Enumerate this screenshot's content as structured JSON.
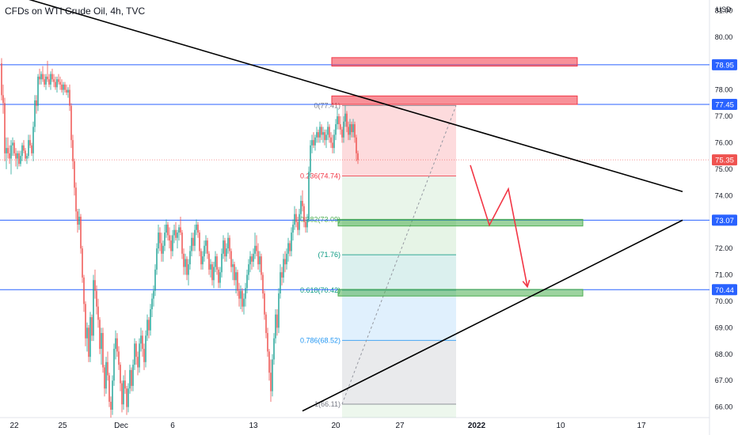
{
  "header": {
    "title": "CFDs on WTI Crude Oil, 4h, TVC"
  },
  "colors": {
    "up": "#26a69a",
    "down": "#ef5350",
    "level_line": "#2962ff",
    "resistance_zone": "#f23645",
    "support_zone": "#4caf50",
    "trendline": "#000000",
    "projection_arrow": "#f23645"
  },
  "chart_data": {
    "type": "candlestick",
    "title": "CFDs on WTI Crude Oil, 4h, TVC",
    "y_axis": {
      "unit_label": "USD",
      "range": [
        65.6,
        81.4
      ],
      "ticks": [
        81.0,
        80.0,
        79.0,
        78.0,
        77.0,
        76.0,
        75.0,
        74.0,
        73.0,
        72.0,
        71.0,
        70.0,
        69.0,
        68.0,
        67.0,
        66.0
      ]
    },
    "x_axis": {
      "tick_labels": [
        "22",
        "25",
        "Dec",
        "6",
        "13",
        "20",
        "27",
        "2022",
        "10",
        "17"
      ]
    },
    "price_badges": [
      {
        "value": "78.95",
        "kind": "level"
      },
      {
        "value": "77.45",
        "kind": "level"
      },
      {
        "value": "75.35",
        "kind": "last"
      },
      {
        "value": "73.07",
        "kind": "level"
      },
      {
        "value": "70.44",
        "kind": "level"
      }
    ],
    "horizontal_levels": [
      78.95,
      77.45,
      73.07,
      70.44
    ],
    "last_price": 75.35,
    "fibonacci": [
      {
        "label": "0(77.41)",
        "ratio": 0,
        "price": 77.41
      },
      {
        "label": "0.236(74.74)",
        "ratio": 0.236,
        "price": 74.74
      },
      {
        "label": "0.382(73.09)",
        "ratio": 0.382,
        "price": 73.09
      },
      {
        "label": "(71.76)",
        "ratio": 0.5,
        "price": 71.76
      },
      {
        "label": "0.618(70.42)",
        "ratio": 0.618,
        "price": 70.42
      },
      {
        "label": "0.786(68.52)",
        "ratio": 0.786,
        "price": 68.52
      },
      {
        "label": "1(66.11)",
        "ratio": 1,
        "price": 66.11
      }
    ],
    "zones": [
      {
        "kind": "resistance",
        "price_low": 78.9,
        "price_high": 79.22
      },
      {
        "kind": "resistance",
        "price_low": 77.45,
        "price_high": 77.77
      },
      {
        "kind": "support",
        "price_low": 72.85,
        "price_high": 73.1
      },
      {
        "kind": "support",
        "price_low": 70.2,
        "price_high": 70.45
      }
    ],
    "trendlines": [
      {
        "from": {
          "bar": 10,
          "price": 81.55
        },
        "to": {
          "bar": 430,
          "price": 74.15
        }
      },
      {
        "from": {
          "bar": 190,
          "price": 65.85
        },
        "to": {
          "bar": 430,
          "price": 73.07
        }
      }
    ],
    "projection": [
      {
        "bar": 296,
        "price": 75.15
      },
      {
        "bar": 308,
        "price": 72.88
      },
      {
        "bar": 320,
        "price": 74.25
      },
      {
        "bar": 332,
        "price": 70.55
      }
    ],
    "candles": [
      [
        79.0,
        79.2,
        77.6,
        77.8
      ],
      [
        77.8,
        78.2,
        77.1,
        77.5
      ],
      [
        77.5,
        77.7,
        75.3,
        75.6
      ],
      [
        75.6,
        76.2,
        75.0,
        75.8
      ],
      [
        75.8,
        76.2,
        75.4,
        75.6
      ],
      [
        75.6,
        75.9,
        75.2,
        75.4
      ],
      [
        75.4,
        76.1,
        74.8,
        75.9
      ],
      [
        75.9,
        76.2,
        75.5,
        76.0
      ],
      [
        76.0,
        76.1,
        75.5,
        75.6
      ],
      [
        75.6,
        75.8,
        75.1,
        75.4
      ],
      [
        75.4,
        75.7,
        75.0,
        75.6
      ],
      [
        75.6,
        75.7,
        75.1,
        75.2
      ],
      [
        75.2,
        75.7,
        75.1,
        75.5
      ],
      [
        75.5,
        76.0,
        75.3,
        75.9
      ],
      [
        75.9,
        76.1,
        75.6,
        75.7
      ],
      [
        75.7,
        75.8,
        75.3,
        75.4
      ],
      [
        75.4,
        75.6,
        75.2,
        75.5
      ],
      [
        75.5,
        76.3,
        75.4,
        76.1
      ],
      [
        76.1,
        76.3,
        75.8,
        75.9
      ],
      [
        75.9,
        76.0,
        75.5,
        75.6
      ],
      [
        75.6,
        76.8,
        75.3,
        76.6
      ],
      [
        76.6,
        77.8,
        76.4,
        77.6
      ],
      [
        77.6,
        77.8,
        77.1,
        77.4
      ],
      [
        77.4,
        78.6,
        77.2,
        78.5
      ],
      [
        78.5,
        78.8,
        78.2,
        78.4
      ],
      [
        78.4,
        78.7,
        78.2,
        78.6
      ],
      [
        78.6,
        78.9,
        78.3,
        78.4
      ],
      [
        78.4,
        78.6,
        78.1,
        78.2
      ],
      [
        78.2,
        78.6,
        78.0,
        78.5
      ],
      [
        78.5,
        79.1,
        78.3,
        78.4
      ],
      [
        78.4,
        78.6,
        78.1,
        78.2
      ],
      [
        78.2,
        78.7,
        78.0,
        78.6
      ],
      [
        78.6,
        78.8,
        78.3,
        78.4
      ],
      [
        78.4,
        78.6,
        78.1,
        78.3
      ],
      [
        78.3,
        78.5,
        78.0,
        78.1
      ],
      [
        78.1,
        78.5,
        77.9,
        78.4
      ],
      [
        78.4,
        78.6,
        78.2,
        78.3
      ],
      [
        78.3,
        78.5,
        78.0,
        78.2
      ],
      [
        78.2,
        78.4,
        77.9,
        78.0
      ],
      [
        78.0,
        78.3,
        77.8,
        78.2
      ],
      [
        78.2,
        78.3,
        77.9,
        78.0
      ],
      [
        78.0,
        78.2,
        77.8,
        77.9
      ],
      [
        77.9,
        78.1,
        77.7,
        78.0
      ],
      [
        78.0,
        78.2,
        77.2,
        77.4
      ],
      [
        77.4,
        77.5,
        75.8,
        76.1
      ],
      [
        76.1,
        76.3,
        75.0,
        75.3
      ],
      [
        75.3,
        75.4,
        74.0,
        74.3
      ],
      [
        74.3,
        74.5,
        73.1,
        73.4
      ],
      [
        73.4,
        73.5,
        72.6,
        72.9
      ],
      [
        72.9,
        73.5,
        72.7,
        73.2
      ],
      [
        73.2,
        73.3,
        71.8,
        72.0
      ],
      [
        72.0,
        72.1,
        70.7,
        70.9
      ],
      [
        70.9,
        71.0,
        69.6,
        69.9
      ],
      [
        69.9,
        70.0,
        68.3,
        68.6
      ],
      [
        68.6,
        69.2,
        68.1,
        69.0
      ],
      [
        69.0,
        69.1,
        67.7,
        67.9
      ],
      [
        67.9,
        69.6,
        67.7,
        69.4
      ],
      [
        69.4,
        69.5,
        68.5,
        68.7
      ],
      [
        68.7,
        71.0,
        68.5,
        70.8
      ],
      [
        70.8,
        71.2,
        70.1,
        70.4
      ],
      [
        70.4,
        70.6,
        69.5,
        69.8
      ],
      [
        69.8,
        70.1,
        69.0,
        69.3
      ],
      [
        69.3,
        69.4,
        68.0,
        68.2
      ],
      [
        68.2,
        69.0,
        67.6,
        68.8
      ],
      [
        68.8,
        69.0,
        67.3,
        67.5
      ],
      [
        67.5,
        67.6,
        66.4,
        66.7
      ],
      [
        66.7,
        67.9,
        66.5,
        67.7
      ],
      [
        67.7,
        68.1,
        67.0,
        67.2
      ],
      [
        67.2,
        67.3,
        66.0,
        66.2
      ],
      [
        66.2,
        66.4,
        65.6,
        65.9
      ],
      [
        65.9,
        67.2,
        65.7,
        67.0
      ],
      [
        67.0,
        68.4,
        66.8,
        68.2
      ],
      [
        68.2,
        68.9,
        67.8,
        68.6
      ],
      [
        68.6,
        68.8,
        67.9,
        68.1
      ],
      [
        68.1,
        68.3,
        67.4,
        67.6
      ],
      [
        67.6,
        67.7,
        66.6,
        66.9
      ],
      [
        66.9,
        67.0,
        65.8,
        66.1
      ],
      [
        66.1,
        67.2,
        65.9,
        67.0
      ],
      [
        67.0,
        67.4,
        66.5,
        66.7
      ],
      [
        66.7,
        66.8,
        65.7,
        66.0
      ],
      [
        66.0,
        66.9,
        65.8,
        66.7
      ],
      [
        66.7,
        67.6,
        66.5,
        67.4
      ],
      [
        67.4,
        67.5,
        66.6,
        66.8
      ],
      [
        66.8,
        67.8,
        66.6,
        67.6
      ],
      [
        67.6,
        68.6,
        67.4,
        68.4
      ],
      [
        68.4,
        68.5,
        67.6,
        67.9
      ],
      [
        67.9,
        68.1,
        67.2,
        67.5
      ],
      [
        67.5,
        68.6,
        67.3,
        68.4
      ],
      [
        68.4,
        69.0,
        68.1,
        68.7
      ],
      [
        68.7,
        68.9,
        67.9,
        68.2
      ],
      [
        68.2,
        68.4,
        67.4,
        67.7
      ],
      [
        67.7,
        68.9,
        67.5,
        68.7
      ],
      [
        68.7,
        69.5,
        68.5,
        69.3
      ],
      [
        69.3,
        69.4,
        68.6,
        68.9
      ],
      [
        68.9,
        69.9,
        68.7,
        69.7
      ],
      [
        69.7,
        70.3,
        69.4,
        70.1
      ],
      [
        70.1,
        70.6,
        69.8,
        70.4
      ],
      [
        70.4,
        71.4,
        70.2,
        71.2
      ],
      [
        71.2,
        72.2,
        71.0,
        72.0
      ],
      [
        72.0,
        72.9,
        71.8,
        72.6
      ],
      [
        72.6,
        72.8,
        71.9,
        72.2
      ],
      [
        72.2,
        72.6,
        71.5,
        71.8
      ],
      [
        71.8,
        72.3,
        71.5,
        72.1
      ],
      [
        72.1,
        72.9,
        71.9,
        72.6
      ],
      [
        72.6,
        73.1,
        72.4,
        72.9
      ],
      [
        72.9,
        73.0,
        72.3,
        72.5
      ],
      [
        72.5,
        72.8,
        72.0,
        72.3
      ],
      [
        72.3,
        72.5,
        71.6,
        71.9
      ],
      [
        71.9,
        72.7,
        71.7,
        72.5
      ],
      [
        72.5,
        72.9,
        72.2,
        72.7
      ],
      [
        72.7,
        73.0,
        72.3,
        72.4
      ],
      [
        72.4,
        72.7,
        72.0,
        72.6
      ],
      [
        72.6,
        72.9,
        72.3,
        72.8
      ],
      [
        72.8,
        73.2,
        72.5,
        72.6
      ],
      [
        72.6,
        72.7,
        71.6,
        71.8
      ],
      [
        71.8,
        72.0,
        71.0,
        71.3
      ],
      [
        71.3,
        71.8,
        71.0,
        71.6
      ],
      [
        71.6,
        71.7,
        70.8,
        71.0
      ],
      [
        71.0,
        71.6,
        70.6,
        71.4
      ],
      [
        71.4,
        72.1,
        71.2,
        71.9
      ],
      [
        71.9,
        72.6,
        71.7,
        72.4
      ],
      [
        72.4,
        72.6,
        71.9,
        72.1
      ],
      [
        72.1,
        72.9,
        71.9,
        72.7
      ],
      [
        72.7,
        73.1,
        72.5,
        72.9
      ],
      [
        72.9,
        73.0,
        72.4,
        72.6
      ],
      [
        72.6,
        72.7,
        71.7,
        71.9
      ],
      [
        71.9,
        72.0,
        71.2,
        71.4
      ],
      [
        71.4,
        71.9,
        71.2,
        71.7
      ],
      [
        71.7,
        72.3,
        71.5,
        72.1
      ],
      [
        72.1,
        72.5,
        71.8,
        72.3
      ],
      [
        72.3,
        72.4,
        71.6,
        71.8
      ],
      [
        71.8,
        71.9,
        71.0,
        71.2
      ],
      [
        71.2,
        71.6,
        70.9,
        71.4
      ],
      [
        71.4,
        71.5,
        70.6,
        70.8
      ],
      [
        70.8,
        71.5,
        70.5,
        71.3
      ],
      [
        71.3,
        71.9,
        71.1,
        71.7
      ],
      [
        71.7,
        71.8,
        71.0,
        71.2
      ],
      [
        71.2,
        71.3,
        70.5,
        70.7
      ],
      [
        70.7,
        71.3,
        70.5,
        71.1
      ],
      [
        71.1,
        72.0,
        70.9,
        71.8
      ],
      [
        71.8,
        72.5,
        71.6,
        72.3
      ],
      [
        72.3,
        72.4,
        71.5,
        71.7
      ],
      [
        71.7,
        72.2,
        71.5,
        72.0
      ],
      [
        72.0,
        72.6,
        71.8,
        72.4
      ],
      [
        72.4,
        72.5,
        71.6,
        71.9
      ],
      [
        71.9,
        72.0,
        71.1,
        71.3
      ],
      [
        71.3,
        71.6,
        70.8,
        71.4
      ],
      [
        71.4,
        71.5,
        70.6,
        70.8
      ],
      [
        70.8,
        71.3,
        70.3,
        71.1
      ],
      [
        71.1,
        71.2,
        70.2,
        70.4
      ],
      [
        70.4,
        70.7,
        69.8,
        70.1
      ],
      [
        70.1,
        70.6,
        69.7,
        70.4
      ],
      [
        70.4,
        70.5,
        69.6,
        69.8
      ],
      [
        69.8,
        70.3,
        69.5,
        70.1
      ],
      [
        70.1,
        70.7,
        69.8,
        70.5
      ],
      [
        70.5,
        71.2,
        70.3,
        71.0
      ],
      [
        71.0,
        71.6,
        70.8,
        71.4
      ],
      [
        71.4,
        71.9,
        71.1,
        71.7
      ],
      [
        71.7,
        71.8,
        71.2,
        71.5
      ],
      [
        71.5,
        72.0,
        71.3,
        71.8
      ],
      [
        71.8,
        72.6,
        71.6,
        72.1
      ],
      [
        72.1,
        72.5,
        71.7,
        71.9
      ],
      [
        71.9,
        72.2,
        71.2,
        71.4
      ],
      [
        71.4,
        71.9,
        71.1,
        71.7
      ],
      [
        71.7,
        71.8,
        70.8,
        71.0
      ],
      [
        71.0,
        71.1,
        70.1,
        70.3
      ],
      [
        70.3,
        70.4,
        69.3,
        69.5
      ],
      [
        69.5,
        69.6,
        68.6,
        68.8
      ],
      [
        68.8,
        69.0,
        67.9,
        68.1
      ],
      [
        68.1,
        68.2,
        67.0,
        67.3
      ],
      [
        67.3,
        67.8,
        66.2,
        66.6
      ],
      [
        66.6,
        68.0,
        66.4,
        67.8
      ],
      [
        67.8,
        68.8,
        67.6,
        68.6
      ],
      [
        68.6,
        69.7,
        68.4,
        69.5
      ],
      [
        69.5,
        69.7,
        68.7,
        69.0
      ],
      [
        69.0,
        70.5,
        68.8,
        70.3
      ],
      [
        70.3,
        71.4,
        70.1,
        71.1
      ],
      [
        71.1,
        71.3,
        70.6,
        70.9
      ],
      [
        70.9,
        71.8,
        70.7,
        71.6
      ],
      [
        71.6,
        71.9,
        71.1,
        71.4
      ],
      [
        71.4,
        72.0,
        71.2,
        71.8
      ],
      [
        71.8,
        72.4,
        71.5,
        72.2
      ],
      [
        72.2,
        72.3,
        71.7,
        71.9
      ],
      [
        71.9,
        72.8,
        71.7,
        72.6
      ],
      [
        72.6,
        73.1,
        72.3,
        72.9
      ],
      [
        72.9,
        73.6,
        72.7,
        73.3
      ],
      [
        73.3,
        73.5,
        72.8,
        73.0
      ],
      [
        73.0,
        73.2,
        72.5,
        72.7
      ],
      [
        72.7,
        73.5,
        72.5,
        73.3
      ],
      [
        73.3,
        74.0,
        73.1,
        73.8
      ],
      [
        73.8,
        74.2,
        73.4,
        73.6
      ],
      [
        73.6,
        73.7,
        72.8,
        73.0
      ],
      [
        73.0,
        73.2,
        72.6,
        72.8
      ],
      [
        72.8,
        73.3,
        72.6,
        73.1
      ],
      [
        73.1,
        75.1,
        73.0,
        74.9
      ],
      [
        74.9,
        76.1,
        74.7,
        75.9
      ],
      [
        75.9,
        76.3,
        75.6,
        76.1
      ],
      [
        76.1,
        76.4,
        75.8,
        75.9
      ],
      [
        75.9,
        76.3,
        75.7,
        76.2
      ],
      [
        76.2,
        76.6,
        76.0,
        76.4
      ],
      [
        76.4,
        76.5,
        76.0,
        76.2
      ],
      [
        76.2,
        76.8,
        76.0,
        76.6
      ],
      [
        76.6,
        76.7,
        76.1,
        76.3
      ],
      [
        76.3,
        76.6,
        76.0,
        76.4
      ],
      [
        76.4,
        76.5,
        75.9,
        76.1
      ],
      [
        76.1,
        76.5,
        75.8,
        76.3
      ],
      [
        76.3,
        76.8,
        76.1,
        76.6
      ],
      [
        76.6,
        76.7,
        76.0,
        76.2
      ],
      [
        76.2,
        76.4,
        75.8,
        76.0
      ],
      [
        76.0,
        76.3,
        75.6,
        75.8
      ],
      [
        75.8,
        76.5,
        75.6,
        76.3
      ],
      [
        76.3,
        76.9,
        76.1,
        76.7
      ],
      [
        76.7,
        77.3,
        76.5,
        77.0
      ],
      [
        77.0,
        77.1,
        76.5,
        76.7
      ],
      [
        76.7,
        77.0,
        76.3,
        76.5
      ],
      [
        76.5,
        76.6,
        76.0,
        76.2
      ],
      [
        76.2,
        77.0,
        76.0,
        76.8
      ],
      [
        76.8,
        77.4,
        76.6,
        77.1
      ],
      [
        77.1,
        77.2,
        76.4,
        76.6
      ],
      [
        76.6,
        76.8,
        76.1,
        76.3
      ],
      [
        76.3,
        76.9,
        76.1,
        76.7
      ],
      [
        76.7,
        76.8,
        76.2,
        76.4
      ],
      [
        76.4,
        76.9,
        76.2,
        76.7
      ],
      [
        76.7,
        76.8,
        76.0,
        76.2
      ],
      [
        76.2,
        76.3,
        75.3,
        75.6
      ],
      [
        75.6,
        75.7,
        75.2,
        75.35
      ]
    ]
  }
}
